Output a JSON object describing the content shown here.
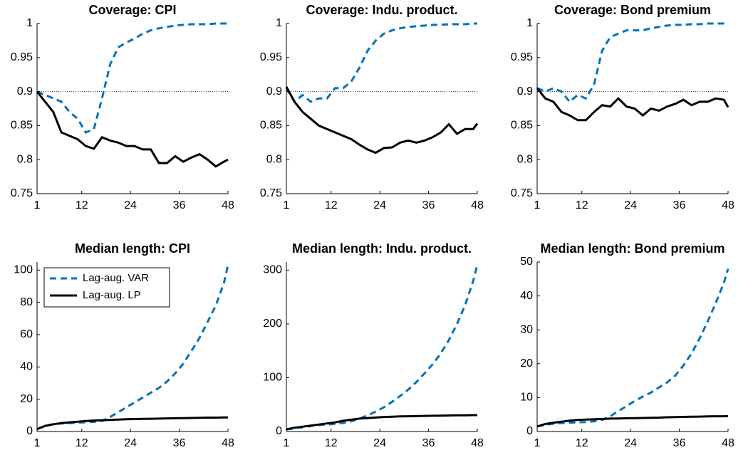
{
  "chart_data": [
    {
      "type": "line",
      "title": "Coverage: CPI",
      "xlim": [
        1,
        48
      ],
      "xticks": [
        1,
        12,
        24,
        36,
        48
      ],
      "ylim": [
        0.75,
        1
      ],
      "yticks": [
        0.75,
        0.8,
        0.85,
        0.9,
        0.95,
        1
      ],
      "ref_line": 0.9,
      "x": [
        1,
        3,
        5,
        7,
        9,
        11,
        13,
        15,
        17,
        19,
        21,
        23,
        25,
        27,
        29,
        31,
        33,
        35,
        37,
        39,
        41,
        43,
        45,
        47,
        48
      ],
      "series": [
        {
          "color": "#0072bd",
          "linestyle": "dashed",
          "values": [
            0.9,
            0.895,
            0.89,
            0.885,
            0.87,
            0.86,
            0.84,
            0.845,
            0.89,
            0.94,
            0.965,
            0.972,
            0.978,
            0.985,
            0.99,
            0.993,
            0.995,
            0.997,
            0.998,
            0.999,
            0.999,
            0.999,
            1,
            1,
            1
          ]
        },
        {
          "color": "#000000",
          "linestyle": "solid",
          "values": [
            0.9,
            0.885,
            0.87,
            0.84,
            0.835,
            0.83,
            0.82,
            0.816,
            0.833,
            0.828,
            0.825,
            0.82,
            0.82,
            0.815,
            0.815,
            0.795,
            0.795,
            0.805,
            0.797,
            0.803,
            0.808,
            0.8,
            0.79,
            0.797,
            0.8
          ]
        }
      ]
    },
    {
      "type": "line",
      "title": "Coverage: Indu. product.",
      "xlim": [
        1,
        48
      ],
      "xticks": [
        1,
        12,
        24,
        36,
        48
      ],
      "ylim": [
        0.75,
        1
      ],
      "yticks": [
        0.75,
        0.8,
        0.85,
        0.9,
        0.95,
        1
      ],
      "ref_line": 0.9,
      "x": [
        1,
        3,
        5,
        7,
        9,
        11,
        13,
        15,
        17,
        19,
        21,
        23,
        25,
        27,
        29,
        31,
        33,
        35,
        37,
        39,
        41,
        43,
        45,
        47,
        48
      ],
      "series": [
        {
          "color": "#0072bd",
          "linestyle": "dashed",
          "values": [
            0.905,
            0.885,
            0.895,
            0.885,
            0.89,
            0.89,
            0.905,
            0.905,
            0.915,
            0.935,
            0.96,
            0.975,
            0.985,
            0.99,
            0.993,
            0.995,
            0.996,
            0.997,
            0.998,
            0.998,
            0.999,
            0.999,
            0.999,
            1,
            1
          ]
        },
        {
          "color": "#000000",
          "linestyle": "solid",
          "values": [
            0.907,
            0.885,
            0.87,
            0.86,
            0.85,
            0.845,
            0.84,
            0.835,
            0.83,
            0.822,
            0.815,
            0.81,
            0.817,
            0.818,
            0.825,
            0.828,
            0.825,
            0.828,
            0.833,
            0.84,
            0.852,
            0.838,
            0.845,
            0.845,
            0.853
          ]
        }
      ]
    },
    {
      "type": "line",
      "title": "Coverage: Bond premium",
      "xlim": [
        1,
        48
      ],
      "xticks": [
        1,
        12,
        24,
        36,
        48
      ],
      "ylim": [
        0.75,
        1
      ],
      "yticks": [
        0.75,
        0.8,
        0.85,
        0.9,
        0.95,
        1
      ],
      "ref_line": 0.9,
      "x": [
        1,
        3,
        5,
        7,
        9,
        11,
        13,
        15,
        17,
        19,
        21,
        23,
        25,
        27,
        29,
        31,
        33,
        35,
        37,
        39,
        41,
        43,
        45,
        47,
        48
      ],
      "series": [
        {
          "color": "#0072bd",
          "linestyle": "dashed",
          "values": [
            0.905,
            0.9,
            0.905,
            0.9,
            0.885,
            0.895,
            0.89,
            0.91,
            0.96,
            0.98,
            0.985,
            0.99,
            0.99,
            0.99,
            0.993,
            0.995,
            0.997,
            0.998,
            0.998,
            0.999,
            0.999,
            1,
            1,
            1,
            1
          ]
        },
        {
          "color": "#000000",
          "linestyle": "solid",
          "values": [
            0.905,
            0.89,
            0.885,
            0.87,
            0.865,
            0.858,
            0.858,
            0.87,
            0.88,
            0.878,
            0.89,
            0.878,
            0.875,
            0.865,
            0.875,
            0.872,
            0.878,
            0.882,
            0.888,
            0.88,
            0.885,
            0.885,
            0.89,
            0.888,
            0.877
          ]
        }
      ]
    },
    {
      "type": "line",
      "title": "Median length: CPI",
      "xlim": [
        1,
        48
      ],
      "xticks": [
        1,
        12,
        24,
        36,
        48
      ],
      "ylim": [
        0,
        105
      ],
      "yticks": [
        0,
        20,
        40,
        60,
        80,
        100
      ],
      "legend": "upper left",
      "x": [
        1,
        3,
        5,
        7,
        9,
        11,
        13,
        15,
        17,
        19,
        21,
        23,
        25,
        27,
        29,
        31,
        33,
        35,
        37,
        39,
        41,
        43,
        45,
        47,
        48
      ],
      "series": [
        {
          "name": "Lag-aug. VAR",
          "color": "#0072bd",
          "linestyle": "dashed",
          "values": [
            1.5,
            3.5,
            4.5,
            5,
            5.2,
            5.5,
            5.7,
            6,
            6.5,
            9,
            12,
            15,
            18,
            21,
            24,
            27,
            31,
            36,
            42,
            50,
            58,
            68,
            78,
            92,
            103
          ]
        },
        {
          "name": "Lag-aug. LP",
          "color": "#000000",
          "linestyle": "solid",
          "values": [
            1.5,
            3.5,
            4.5,
            5.2,
            5.7,
            6.1,
            6.5,
            6.8,
            7,
            7.2,
            7.4,
            7.6,
            7.7,
            7.8,
            7.9,
            8,
            8.1,
            8.2,
            8.3,
            8.4,
            8.5,
            8.6,
            8.6,
            8.7,
            8.7
          ]
        }
      ]
    },
    {
      "type": "line",
      "title": "Median length: Indu. product.",
      "xlim": [
        1,
        48
      ],
      "xticks": [
        1,
        12,
        24,
        36,
        48
      ],
      "ylim": [
        0,
        315
      ],
      "yticks": [
        0,
        100,
        200,
        300
      ],
      "x": [
        1,
        3,
        5,
        7,
        9,
        11,
        13,
        15,
        17,
        19,
        21,
        23,
        25,
        27,
        29,
        31,
        33,
        35,
        37,
        39,
        41,
        43,
        45,
        47,
        48
      ],
      "series": [
        {
          "color": "#0072bd",
          "linestyle": "dashed",
          "values": [
            4,
            6,
            8,
            10,
            12,
            13,
            14,
            16,
            19,
            24,
            30,
            37,
            45,
            55,
            66,
            78,
            92,
            108,
            125,
            145,
            170,
            200,
            235,
            280,
            310
          ]
        },
        {
          "color": "#000000",
          "linestyle": "solid",
          "values": [
            4,
            7,
            9,
            11,
            13,
            15,
            17,
            20,
            22,
            24,
            25,
            26,
            27,
            27.5,
            28,
            28.3,
            28.6,
            29,
            29.2,
            29.5,
            29.8,
            30,
            30.2,
            30.4,
            30.5
          ]
        }
      ]
    },
    {
      "type": "line",
      "title": "Median length: Bond premium",
      "xlim": [
        1,
        48
      ],
      "xticks": [
        1,
        12,
        24,
        36,
        48
      ],
      "ylim": [
        0,
        50
      ],
      "yticks": [
        0,
        10,
        20,
        30,
        40,
        50
      ],
      "x": [
        1,
        3,
        5,
        7,
        9,
        11,
        13,
        15,
        17,
        19,
        21,
        23,
        25,
        27,
        29,
        31,
        33,
        35,
        37,
        39,
        41,
        43,
        45,
        47,
        48
      ],
      "series": [
        {
          "color": "#0072bd",
          "linestyle": "dashed",
          "values": [
            1.5,
            2,
            2.3,
            2.5,
            2.6,
            2.7,
            2.8,
            3,
            3.4,
            4.5,
            6,
            7.5,
            9,
            10.3,
            11.5,
            13,
            14.5,
            16.5,
            19.5,
            23,
            27.5,
            32.5,
            38,
            44,
            48
          ]
        },
        {
          "color": "#000000",
          "linestyle": "solid",
          "values": [
            1.5,
            2.2,
            2.6,
            2.9,
            3.2,
            3.4,
            3.5,
            3.6,
            3.7,
            3.8,
            3.85,
            3.9,
            3.95,
            4,
            4.05,
            4.1,
            4.2,
            4.25,
            4.3,
            4.35,
            4.4,
            4.45,
            4.5,
            4.5,
            4.55
          ]
        }
      ]
    }
  ]
}
